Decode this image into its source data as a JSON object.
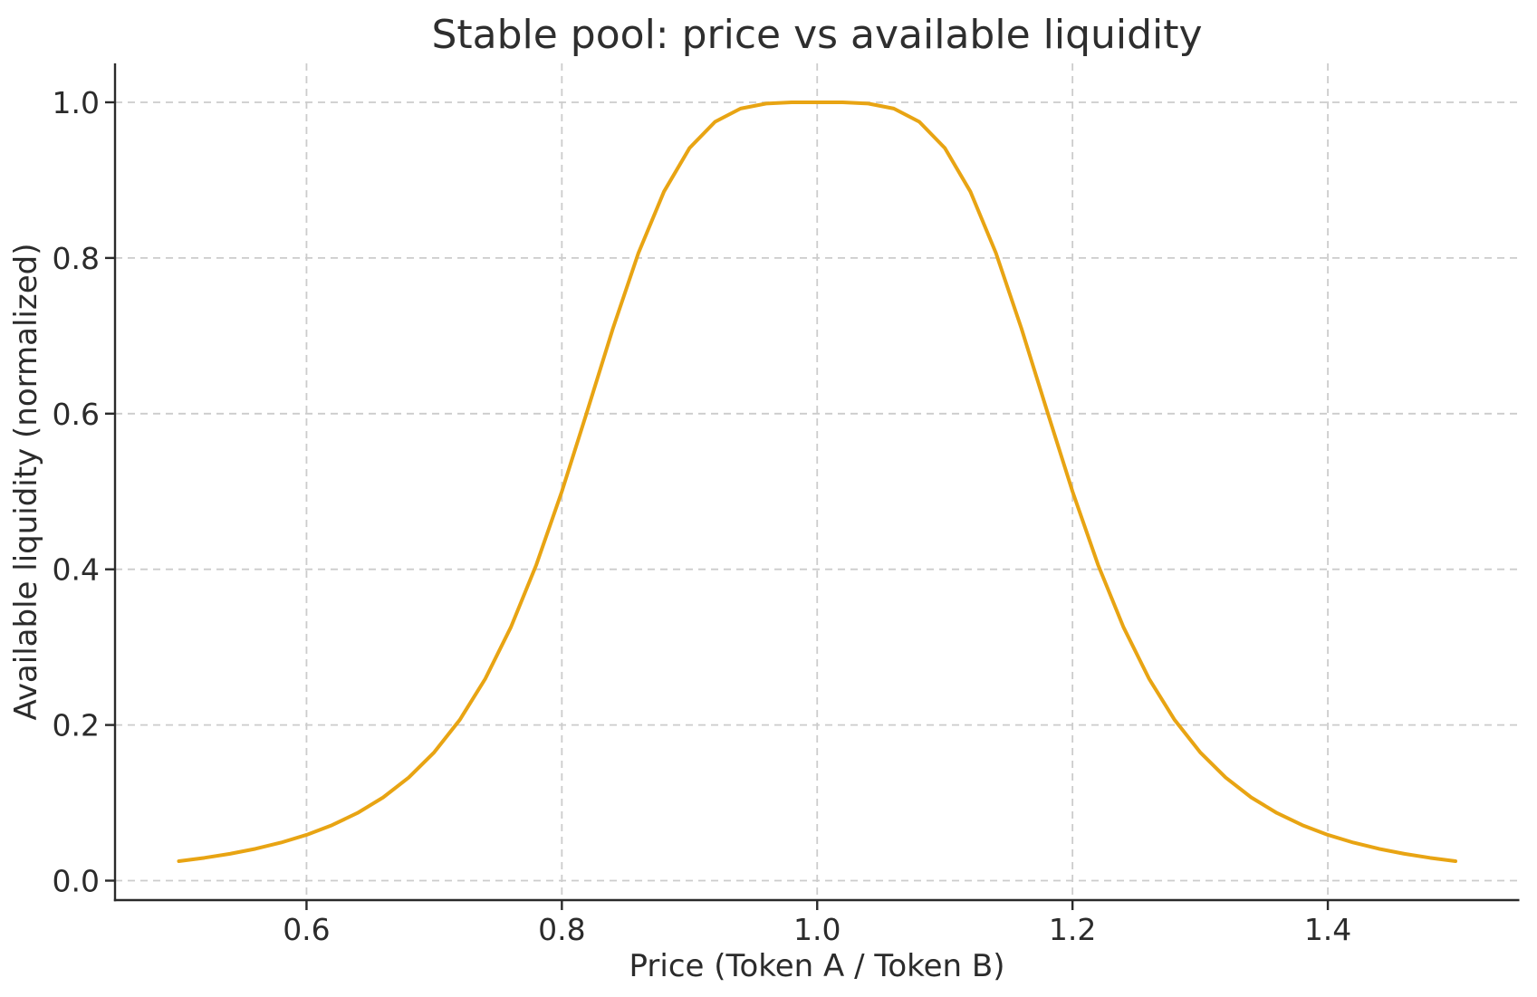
{
  "figure": {
    "background": "#ffffff"
  },
  "colors": {
    "axis": "#2a2a2a",
    "text": "#2b2b2b",
    "grid": "#cccccc",
    "curve": "#e8a413"
  },
  "chart_data": {
    "type": "line",
    "title": "Stable pool: price vs available liquidity",
    "xlabel": "Price (Token A / Token B)",
    "ylabel": "Available liquidity (normalized)",
    "xlim": [
      0.45,
      1.55
    ],
    "ylim": [
      -0.025,
      1.05
    ],
    "grid": {
      "visible": true,
      "linestyle": "dashed",
      "color": "#cccccc"
    },
    "legend": {
      "visible": false
    },
    "xticks": {
      "values": [
        0.6,
        0.8,
        1.0,
        1.2,
        1.4
      ],
      "labels": [
        "0.6",
        "0.8",
        "1.0",
        "1.2",
        "1.4"
      ]
    },
    "yticks": {
      "values": [
        0.0,
        0.2,
        0.4,
        0.6,
        0.8,
        1.0
      ],
      "labels": [
        "0.0",
        "0.2",
        "0.4",
        "0.6",
        "0.8",
        "1.0"
      ]
    },
    "series": [
      {
        "name": "available-liquidity",
        "color": "#e8a413",
        "x": [
          0.5,
          0.52,
          0.54,
          0.56,
          0.58,
          0.6,
          0.62,
          0.64,
          0.66,
          0.68,
          0.7,
          0.72,
          0.74,
          0.76,
          0.78,
          0.8,
          0.82,
          0.84,
          0.86,
          0.88,
          0.9,
          0.92,
          0.94,
          0.96,
          0.98,
          1.0,
          1.02,
          1.04,
          1.06,
          1.08,
          1.1,
          1.12,
          1.14,
          1.16,
          1.18,
          1.2,
          1.22,
          1.24,
          1.26,
          1.28,
          1.3,
          1.32,
          1.34,
          1.36,
          1.38,
          1.4,
          1.42,
          1.44,
          1.46,
          1.48,
          1.5
        ],
        "y": [
          0.025,
          0.0293,
          0.0345,
          0.0409,
          0.0489,
          0.0588,
          0.0713,
          0.087,
          0.1069,
          0.1324,
          0.1649,
          0.2065,
          0.2593,
          0.3254,
          0.4058,
          0.5,
          0.6038,
          0.7094,
          0.8064,
          0.8853,
          0.9412,
          0.975,
          0.992,
          0.9984,
          0.9999,
          1.0,
          0.9999,
          0.9984,
          0.992,
          0.975,
          0.9412,
          0.8853,
          0.8064,
          0.7094,
          0.6038,
          0.5,
          0.4058,
          0.3254,
          0.2593,
          0.2065,
          0.1649,
          0.1324,
          0.1069,
          0.087,
          0.0713,
          0.0588,
          0.0489,
          0.0409,
          0.0345,
          0.0293,
          0.025
        ]
      }
    ]
  }
}
